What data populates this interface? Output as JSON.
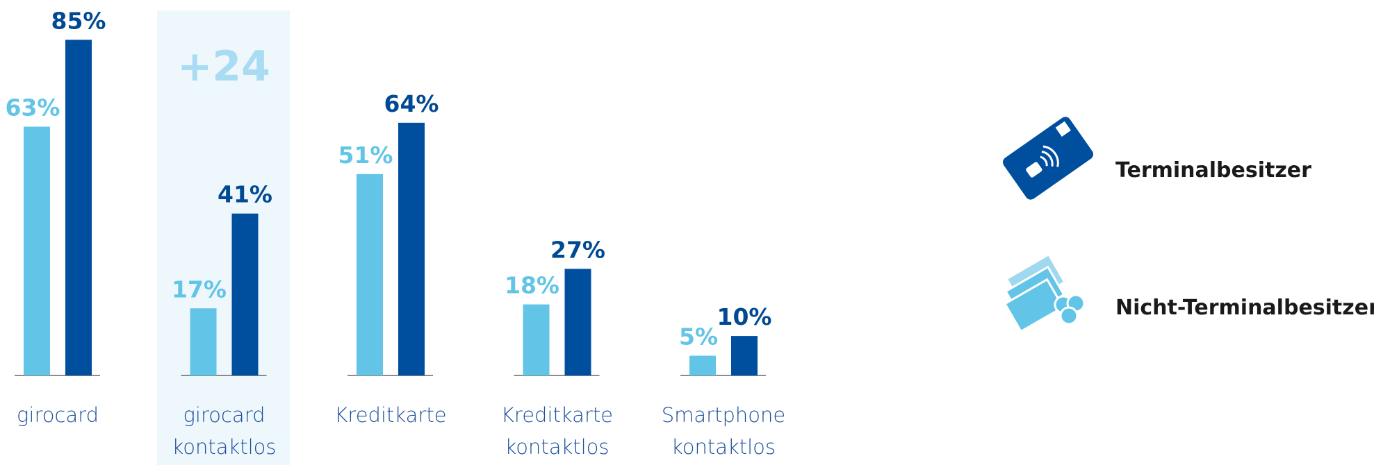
{
  "chart_data": {
    "type": "bar",
    "categories": [
      "girocard",
      "girocard kontaktlos",
      "Kreditkarte",
      "Kreditkarte kontaktlos",
      "Smartphone kontaktlos"
    ],
    "series": [
      {
        "name": "Nicht-Terminalbesitzer",
        "color": "#62c5e8",
        "values": [
          63,
          17,
          51,
          18,
          5
        ],
        "value_labels": [
          "63%",
          "17%",
          "51%",
          "18%",
          "5%"
        ]
      },
      {
        "name": "Terminalbesitzer",
        "color": "#004f9f",
        "values": [
          85,
          41,
          64,
          27,
          10
        ],
        "value_labels": [
          "85%",
          "41%",
          "64%",
          "27%",
          "10%"
        ]
      }
    ],
    "annotations": [
      "+24"
    ]
  }
}
